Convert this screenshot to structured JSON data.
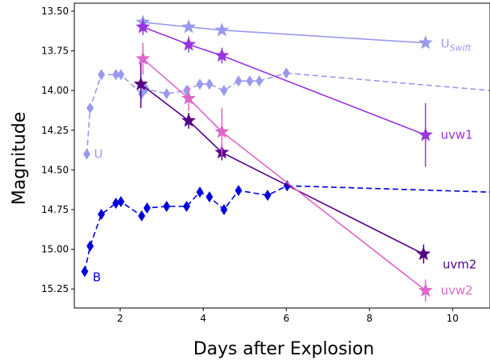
{
  "chart_data": {
    "type": "line",
    "xlabel": "Days after Explosion",
    "ylabel": "Magnitude",
    "xlim": [
      0.9,
      10.9
    ],
    "ylim": [
      15.37,
      13.45
    ],
    "y_inverted": true,
    "grid": false,
    "x_ticks": [
      {
        "value": 2,
        "label": "2"
      },
      {
        "value": 4,
        "label": "4"
      },
      {
        "value": 6,
        "label": "6"
      },
      {
        "value": 8,
        "label": "8"
      },
      {
        "value": 10,
        "label": "10"
      }
    ],
    "y_ticks": [
      {
        "value": 13.5,
        "label": "13.50"
      },
      {
        "value": 13.75,
        "label": "13.75"
      },
      {
        "value": 14.0,
        "label": "14.00"
      },
      {
        "value": 14.25,
        "label": "14.25"
      },
      {
        "value": 14.5,
        "label": "14.50"
      },
      {
        "value": 14.75,
        "label": "14.75"
      },
      {
        "value": 15.0,
        "label": "15.00"
      },
      {
        "value": 15.25,
        "label": "15.25"
      }
    ],
    "series": [
      {
        "name": "U",
        "label": "U",
        "color": "#9999ee",
        "marker": "diamond",
        "line_style": "dashed",
        "points": [
          {
            "x": 1.2,
            "y": 14.4
          },
          {
            "x": 1.28,
            "y": 14.11
          },
          {
            "x": 1.55,
            "y": 13.9
          },
          {
            "x": 1.9,
            "y": 13.9
          },
          {
            "x": 2.02,
            "y": 13.9
          },
          {
            "x": 2.52,
            "y": 14.02
          },
          {
            "x": 2.62,
            "y": 13.99
          },
          {
            "x": 3.12,
            "y": 14.02
          },
          {
            "x": 3.6,
            "y": 14.0
          },
          {
            "x": 3.92,
            "y": 13.96
          },
          {
            "x": 4.15,
            "y": 13.96
          },
          {
            "x": 4.5,
            "y": 14.0
          },
          {
            "x": 4.85,
            "y": 13.94
          },
          {
            "x": 5.12,
            "y": 13.94
          },
          {
            "x": 5.35,
            "y": 13.94
          },
          {
            "x": 6.0,
            "y": 13.89
          }
        ],
        "extension": {
          "x": 10.9,
          "y": 14.0
        }
      },
      {
        "name": "B",
        "label": "B",
        "color": "#0000dd",
        "marker": "diamond",
        "line_style": "dashed",
        "points": [
          {
            "x": 1.15,
            "y": 15.14
          },
          {
            "x": 1.28,
            "y": 14.98
          },
          {
            "x": 1.55,
            "y": 14.78
          },
          {
            "x": 1.9,
            "y": 14.71
          },
          {
            "x": 2.02,
            "y": 14.7
          },
          {
            "x": 2.52,
            "y": 14.79
          },
          {
            "x": 2.65,
            "y": 14.74
          },
          {
            "x": 3.12,
            "y": 14.73
          },
          {
            "x": 3.6,
            "y": 14.73
          },
          {
            "x": 3.92,
            "y": 14.64
          },
          {
            "x": 4.15,
            "y": 14.67
          },
          {
            "x": 4.5,
            "y": 14.75
          },
          {
            "x": 4.85,
            "y": 14.63
          },
          {
            "x": 5.55,
            "y": 14.66
          },
          {
            "x": 6.02,
            "y": 14.6
          }
        ],
        "extension": {
          "x": 10.9,
          "y": 14.64
        }
      },
      {
        "name": "U_Swift",
        "label": "U",
        "label_sub": "Swift",
        "color": "#9999ee",
        "marker": "star",
        "line_style": "solid",
        "points": [
          {
            "x": 2.55,
            "y": 13.57,
            "err": 0.04
          },
          {
            "x": 3.65,
            "y": 13.6,
            "err": 0.0
          },
          {
            "x": 4.45,
            "y": 13.62,
            "err": 0.0
          },
          {
            "x": 9.35,
            "y": 13.7,
            "err": 0.0
          }
        ]
      },
      {
        "name": "uvw1",
        "label": "uvw1",
        "color": "#9933dd",
        "marker": "star",
        "line_style": "solid",
        "points": [
          {
            "x": 2.55,
            "y": 13.6,
            "err": 0.05
          },
          {
            "x": 3.65,
            "y": 13.71,
            "err": 0.05
          },
          {
            "x": 4.45,
            "y": 13.78,
            "err": 0.05
          },
          {
            "x": 9.35,
            "y": 14.28,
            "err": 0.2
          }
        ]
      },
      {
        "name": "uvm2",
        "label": "uvm2",
        "color": "#550088",
        "marker": "star",
        "line_style": "solid",
        "points": [
          {
            "x": 2.5,
            "y": 13.96,
            "err": 0.15
          },
          {
            "x": 3.65,
            "y": 14.19,
            "err": 0.05
          },
          {
            "x": 4.45,
            "y": 14.39,
            "err": 0.05
          },
          {
            "x": 9.3,
            "y": 15.03,
            "err": 0.06
          }
        ]
      },
      {
        "name": "uvw2",
        "label": "uvw2",
        "color": "#dd66cc",
        "marker": "star",
        "line_style": "solid",
        "points": [
          {
            "x": 2.55,
            "y": 13.8,
            "err": 0.1
          },
          {
            "x": 3.65,
            "y": 14.05,
            "err": 0.08
          },
          {
            "x": 4.45,
            "y": 14.26,
            "err": 0.15
          },
          {
            "x": 9.35,
            "y": 15.26,
            "err": 0.07
          }
        ]
      }
    ]
  }
}
